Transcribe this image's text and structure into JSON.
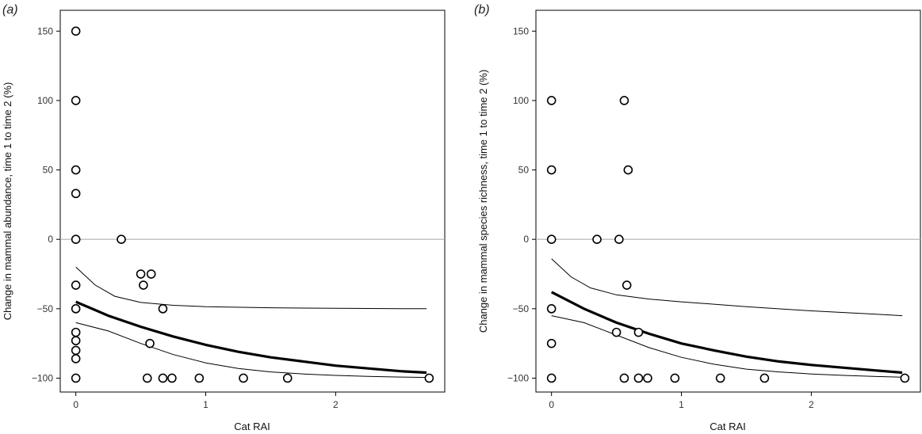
{
  "chart_data": [
    {
      "type": "scatter",
      "panel_label": "(a)",
      "xlabel": "Cat RAI",
      "ylabel": "Change in mammal abundance, time 1 to time 2 (%)",
      "xlim": [
        -0.12,
        2.84
      ],
      "ylim": [
        -110,
        165
      ],
      "xticks": [
        0,
        1,
        2
      ],
      "yticks": [
        -100,
        -50,
        0,
        50,
        100,
        150
      ],
      "reference_line_y": 0,
      "points": [
        {
          "x": 0,
          "y": 150
        },
        {
          "x": 0,
          "y": 100
        },
        {
          "x": 0,
          "y": 50
        },
        {
          "x": 0,
          "y": 33
        },
        {
          "x": 0,
          "y": 0
        },
        {
          "x": 0,
          "y": -33
        },
        {
          "x": 0,
          "y": -50
        },
        {
          "x": 0,
          "y": -67
        },
        {
          "x": 0,
          "y": -73
        },
        {
          "x": 0,
          "y": -80
        },
        {
          "x": 0,
          "y": -86
        },
        {
          "x": 0,
          "y": -100
        },
        {
          "x": 0.35,
          "y": 0
        },
        {
          "x": 0.5,
          "y": -25
        },
        {
          "x": 0.52,
          "y": -33
        },
        {
          "x": 0.58,
          "y": -25
        },
        {
          "x": 0.67,
          "y": -50
        },
        {
          "x": 0.57,
          "y": -75
        },
        {
          "x": 0.55,
          "y": -100
        },
        {
          "x": 0.67,
          "y": -100
        },
        {
          "x": 0.74,
          "y": -100
        },
        {
          "x": 0.95,
          "y": -100
        },
        {
          "x": 1.29,
          "y": -100
        },
        {
          "x": 1.63,
          "y": -100
        },
        {
          "x": 2.72,
          "y": -100
        }
      ],
      "fit_line": {
        "x": [
          0,
          0.25,
          0.5,
          0.75,
          1,
          1.25,
          1.5,
          1.75,
          2,
          2.25,
          2.5,
          2.7
        ],
        "y": [
          -45,
          -55,
          -63,
          -70,
          -76,
          -81,
          -85,
          -88,
          -91,
          -93,
          -95,
          -96
        ]
      },
      "ci_upper": {
        "x": [
          0,
          0.15,
          0.3,
          0.5,
          0.75,
          1,
          1.5,
          2,
          2.5,
          2.7
        ],
        "y": [
          -20,
          -33,
          -41,
          -45.5,
          -47.5,
          -48.5,
          -49.3,
          -49.7,
          -49.9,
          -50
        ]
      },
      "ci_lower": {
        "x": [
          0,
          0.25,
          0.5,
          0.75,
          1,
          1.25,
          1.5,
          1.75,
          2,
          2.25,
          2.5,
          2.7
        ],
        "y": [
          -60,
          -66,
          -75,
          -83,
          -89,
          -93,
          -95.5,
          -97,
          -98,
          -98.7,
          -99.2,
          -99.5
        ]
      }
    },
    {
      "type": "scatter",
      "panel_label": "(b)",
      "xlabel": "Cat RAI",
      "ylabel": "Change in mammal species richness, time 1 to time 2 (%)",
      "xlim": [
        -0.12,
        2.84
      ],
      "ylim": [
        -110,
        165
      ],
      "xticks": [
        0,
        1,
        2
      ],
      "yticks": [
        -100,
        -50,
        0,
        50,
        100,
        150
      ],
      "reference_line_y": 0,
      "points": [
        {
          "x": 0,
          "y": 100
        },
        {
          "x": 0,
          "y": 50
        },
        {
          "x": 0,
          "y": 0
        },
        {
          "x": 0,
          "y": -50
        },
        {
          "x": 0,
          "y": -75
        },
        {
          "x": 0,
          "y": -100
        },
        {
          "x": 0.35,
          "y": 0
        },
        {
          "x": 0.52,
          "y": 0
        },
        {
          "x": 0.56,
          "y": 100
        },
        {
          "x": 0.59,
          "y": 50
        },
        {
          "x": 0.58,
          "y": -33
        },
        {
          "x": 0.5,
          "y": -67
        },
        {
          "x": 0.67,
          "y": -67
        },
        {
          "x": 0.56,
          "y": -100
        },
        {
          "x": 0.67,
          "y": -100
        },
        {
          "x": 0.74,
          "y": -100
        },
        {
          "x": 0.95,
          "y": -100
        },
        {
          "x": 1.3,
          "y": -100
        },
        {
          "x": 1.64,
          "y": -100
        },
        {
          "x": 2.72,
          "y": -100
        }
      ],
      "fit_line": {
        "x": [
          0,
          0.25,
          0.5,
          0.75,
          1,
          1.25,
          1.5,
          1.75,
          2,
          2.25,
          2.5,
          2.7
        ],
        "y": [
          -38,
          -50,
          -60,
          -68,
          -75,
          -80,
          -84.5,
          -88,
          -90.5,
          -92.5,
          -94.5,
          -96
        ]
      },
      "ci_upper": {
        "x": [
          0,
          0.15,
          0.3,
          0.5,
          0.75,
          1,
          1.5,
          2,
          2.5,
          2.7
        ],
        "y": [
          -14,
          -27,
          -35,
          -40,
          -43,
          -45,
          -48.5,
          -51.5,
          -54,
          -55
        ]
      },
      "ci_lower": {
        "x": [
          0,
          0.25,
          0.5,
          0.75,
          1,
          1.25,
          1.5,
          1.75,
          2,
          2.25,
          2.5,
          2.7
        ],
        "y": [
          -55,
          -60,
          -69,
          -78,
          -85,
          -90,
          -93.5,
          -95.5,
          -97,
          -98,
          -98.8,
          -99.3
        ]
      }
    }
  ]
}
